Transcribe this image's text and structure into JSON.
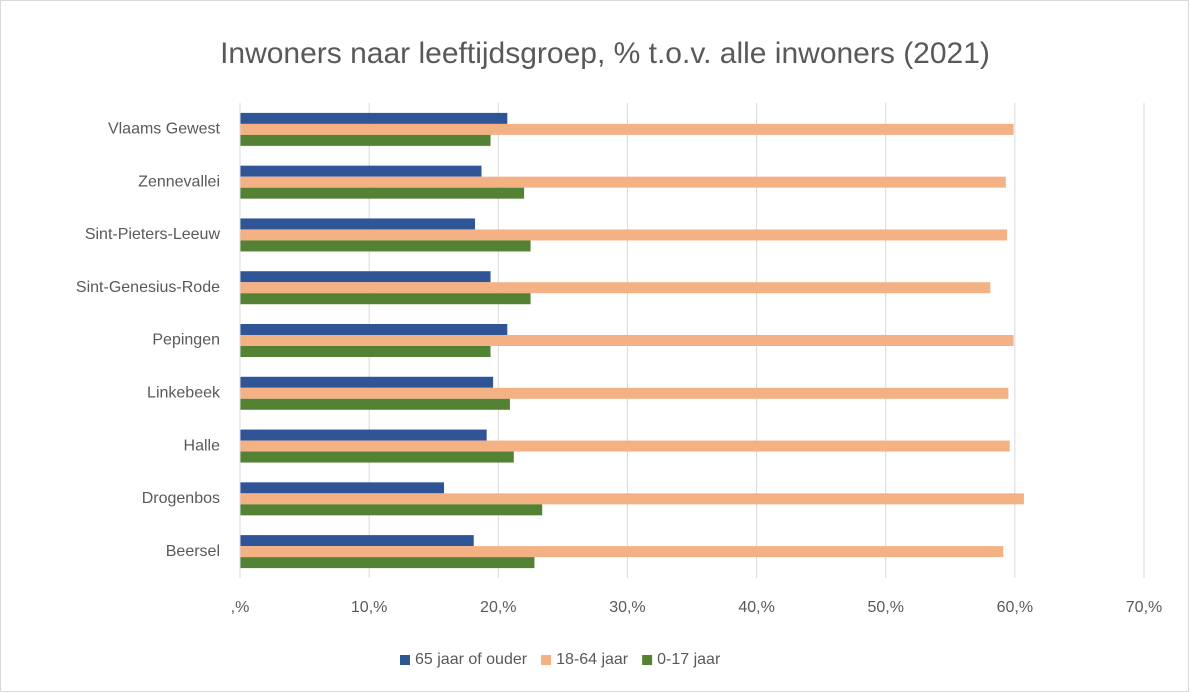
{
  "chart_data": {
    "type": "bar",
    "orientation": "horizontal",
    "title": "Inwoners naar leeftijdsgroep, % t.o.v. alle inwoners (2021)",
    "categories": [
      "Vlaams Gewest",
      "Zennevallei",
      "Sint-Pieters-Leeuw",
      "Sint-Genesius-Rode",
      "Pepingen",
      "Linkebeek",
      "Halle",
      "Drogenbos",
      "Beersel"
    ],
    "series": [
      {
        "name": "65 jaar of ouder",
        "color": "#2f5597",
        "values": [
          20.7,
          18.7,
          18.2,
          19.4,
          20.7,
          19.6,
          19.1,
          15.8,
          18.1
        ]
      },
      {
        "name": "18-64 jaar",
        "color": "#f4b183",
        "values": [
          59.9,
          59.3,
          59.4,
          58.1,
          59.9,
          59.5,
          59.6,
          60.7,
          59.1
        ]
      },
      {
        "name": "0-17 jaar",
        "color": "#548235",
        "values": [
          19.4,
          22.0,
          22.5,
          22.5,
          19.4,
          20.9,
          21.2,
          23.4,
          22.8
        ]
      }
    ],
    "xlim": [
      0,
      70
    ],
    "xticks": [
      {
        "value": 0,
        "label": ",%"
      },
      {
        "value": 10,
        "label": "10,%"
      },
      {
        "value": 20,
        "label": "20,%"
      },
      {
        "value": 30,
        "label": "30,%"
      },
      {
        "value": 40,
        "label": "40,%"
      },
      {
        "value": 50,
        "label": "50,%"
      },
      {
        "value": 60,
        "label": "60,%"
      },
      {
        "value": 70,
        "label": "70,%"
      }
    ],
    "grid": true,
    "legend": "bottom"
  }
}
